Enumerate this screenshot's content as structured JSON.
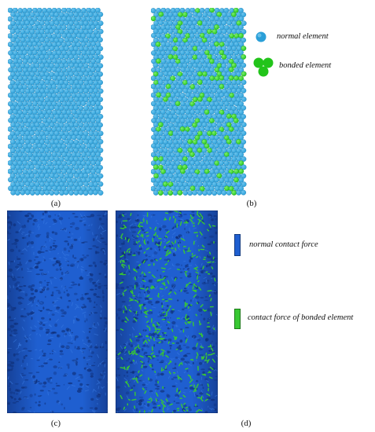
{
  "panels": {
    "a": {
      "label": "(a)"
    },
    "b": {
      "label": "(b)"
    },
    "c": {
      "label": "(c)"
    },
    "d": {
      "label": "(d)"
    }
  },
  "legend_top": {
    "normal": "normal element",
    "bonded": "bonded element"
  },
  "legend_bottom": {
    "normal": "normal contact force",
    "bonded": "contact force of bonded element"
  },
  "colors": {
    "particle_blue": "#2a9fd8",
    "particle_blue_light": "#6cc4ee",
    "particle_green": "#22c41a",
    "force_blue": "#1f5fd0",
    "force_blue_dark": "#16429a",
    "force_green": "#39c833"
  }
}
